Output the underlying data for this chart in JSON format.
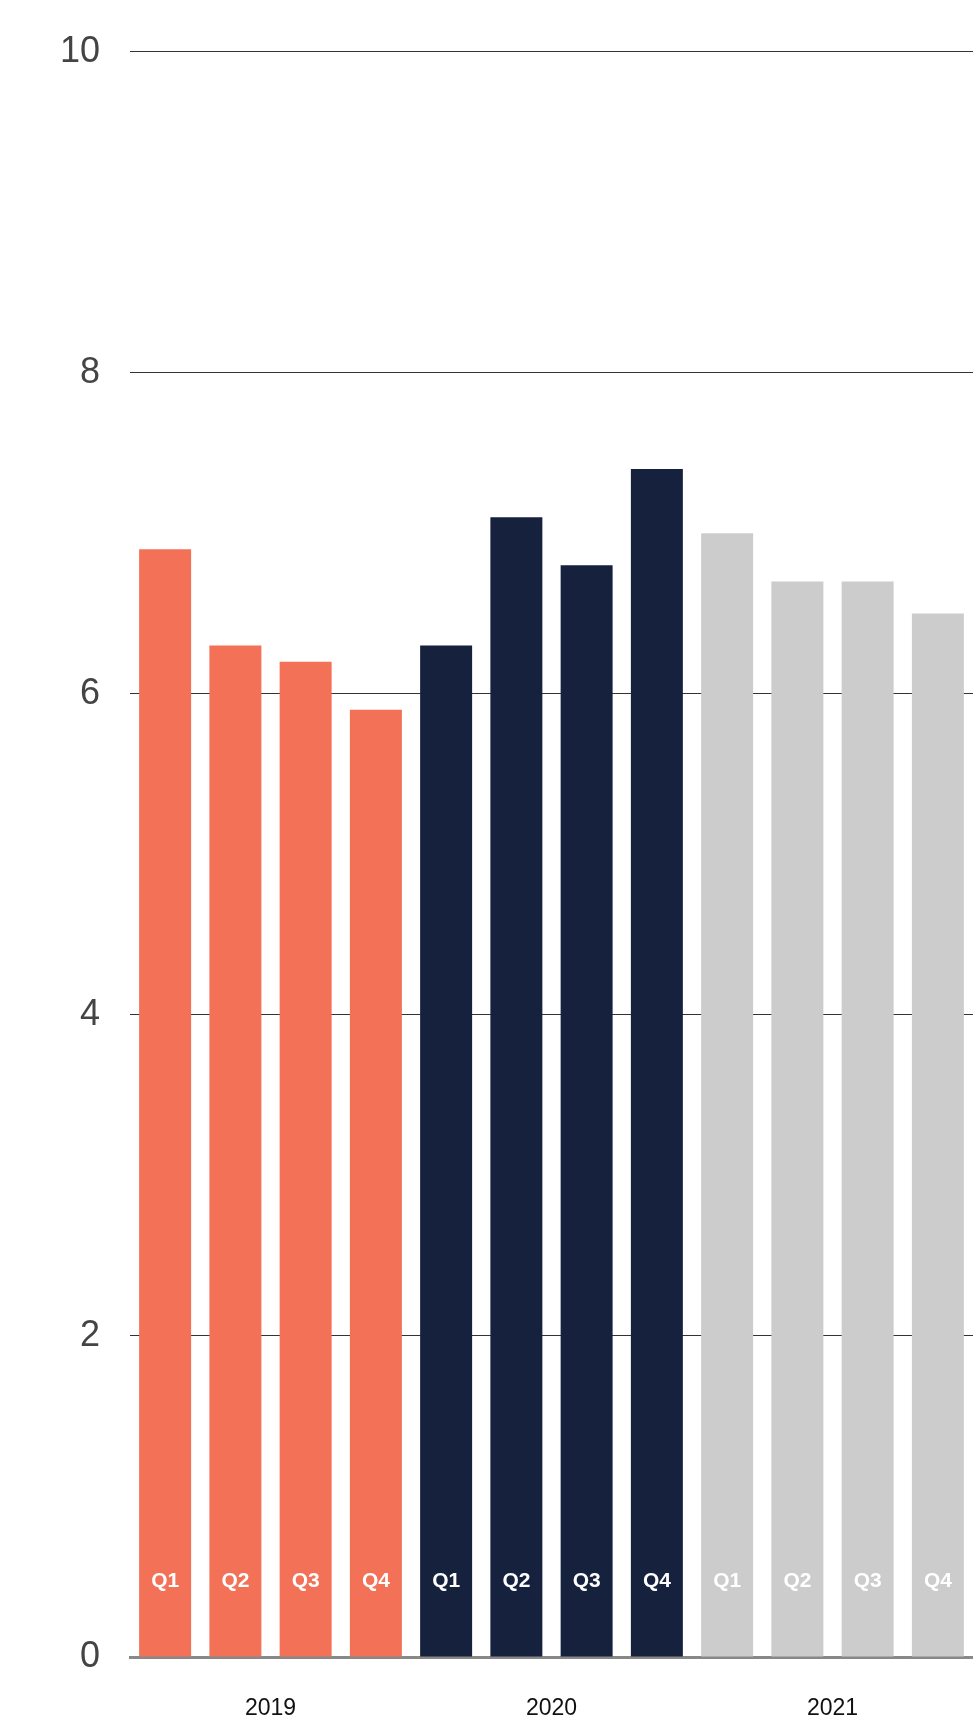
{
  "chart_data": {
    "type": "bar",
    "categories": [
      "Q1",
      "Q2",
      "Q3",
      "Q4",
      "Q1",
      "Q2",
      "Q3",
      "Q4",
      "Q1",
      "Q2",
      "Q3",
      "Q4"
    ],
    "series": [
      {
        "name": "2019",
        "color": "#f27157",
        "values": [
          6.9,
          6.3,
          6.2,
          5.9,
          null,
          null,
          null,
          null,
          null,
          null,
          null,
          null
        ]
      },
      {
        "name": "2020",
        "color": "#15213d",
        "values": [
          null,
          null,
          null,
          null,
          6.3,
          7.1,
          6.8,
          7.4,
          null,
          null,
          null,
          null
        ]
      },
      {
        "name": "2021",
        "color": "#cccccc",
        "values": [
          null,
          null,
          null,
          null,
          null,
          null,
          null,
          null,
          7.0,
          6.7,
          6.7,
          6.5
        ]
      }
    ],
    "ylim": [
      0,
      10
    ],
    "yticks": [
      0,
      2,
      4,
      6,
      8,
      10
    ],
    "grid": "y",
    "legend": false
  }
}
